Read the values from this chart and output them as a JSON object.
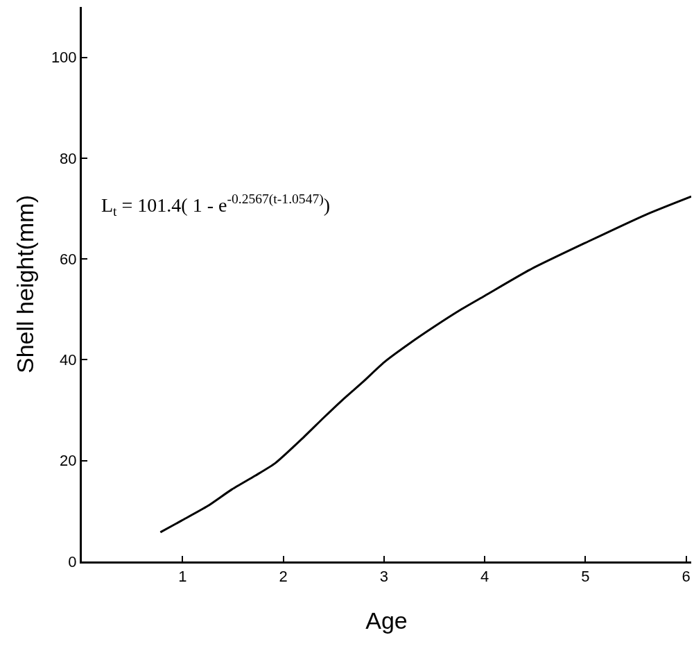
{
  "chart_data": {
    "type": "line",
    "xlabel": "Age",
    "ylabel": "Shell height(mm)",
    "annotations": [
      "L$_{t}$ = 101.4( 1 - e$^{-0.2567(t-1.0547)}$)"
    ],
    "x": [
      0.78,
      0.99,
      1.25,
      1.49,
      1.72,
      1.92,
      2.2,
      2.4,
      2.58,
      2.79,
      3.0,
      3.25,
      3.5,
      3.75,
      4.0,
      4.46,
      5.03,
      5.6,
      6.05
    ],
    "series": [
      {
        "color": "#000000",
        "values": [
          5.8,
          8.1,
          11.0,
          14.3,
          17.0,
          19.5,
          24.6,
          28.5,
          31.9,
          35.6,
          39.5,
          43.2,
          46.6,
          49.8,
          52.7,
          58.0,
          63.5,
          68.8,
          72.4
        ]
      }
    ],
    "xlim": [
      0,
      6.05
    ],
    "xticks": [
      1,
      2,
      3,
      4,
      5,
      6
    ],
    "ylim": [
      0,
      110
    ],
    "yticks": [
      0,
      20,
      40,
      60,
      80,
      100
    ],
    "marker": "none",
    "line_style": "solid"
  }
}
